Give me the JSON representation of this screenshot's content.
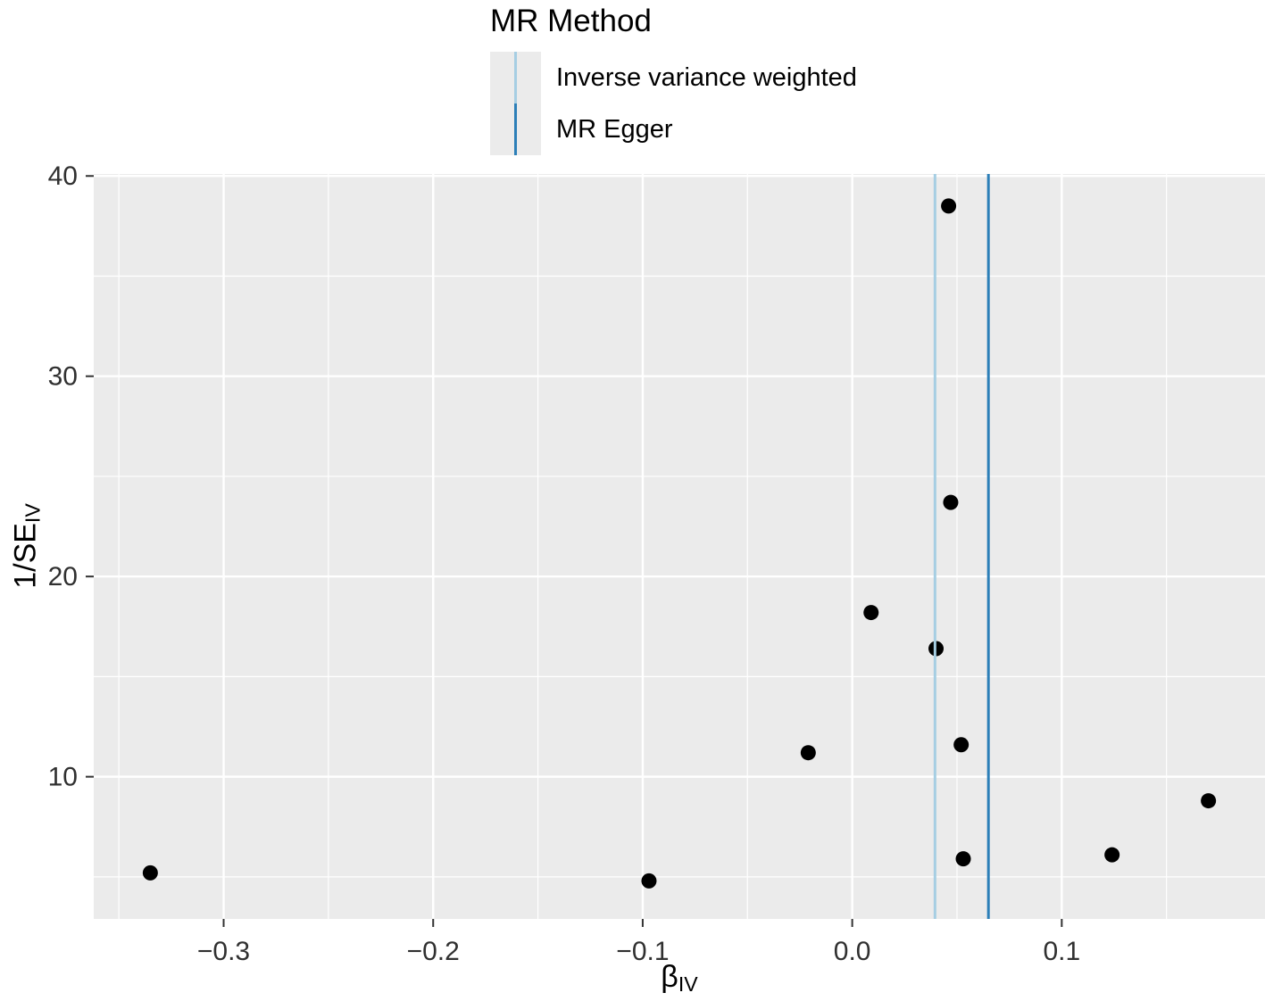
{
  "chart_data": {
    "type": "scatter",
    "title": "",
    "xlabel": "β_IV",
    "ylabel": "1/SE_IV",
    "x_title": {
      "main": "β",
      "sub": "IV"
    },
    "y_title": {
      "main": "1/SE",
      "sub": "IV"
    },
    "xlim": [
      -0.362,
      0.197
    ],
    "ylim": [
      2.9,
      40.1
    ],
    "grid": true,
    "panel_bg": "#ebebeb",
    "grid_color": "#ffffff",
    "point_color": "#000000",
    "tick_color": "#333333",
    "tick_label_color": "#303030",
    "x_major_ticks": [
      -0.3,
      -0.2,
      -0.1,
      0.0,
      0.1
    ],
    "x_tick_labels": [
      "−0.3",
      "−0.2",
      "−0.1",
      "0.0",
      "0.1"
    ],
    "x_minor_ticks": [
      -0.35,
      -0.25,
      -0.15,
      -0.05,
      0.05,
      0.15
    ],
    "y_major_ticks": [
      10,
      20,
      30,
      40
    ],
    "y_tick_labels": [
      "10",
      "20",
      "30",
      "40"
    ],
    "y_minor_ticks": [
      5,
      15,
      25,
      35
    ],
    "points": [
      {
        "x": 0.046,
        "y": 38.5
      },
      {
        "x": 0.047,
        "y": 23.7
      },
      {
        "x": 0.009,
        "y": 18.2
      },
      {
        "x": 0.04,
        "y": 16.4
      },
      {
        "x": 0.052,
        "y": 11.6
      },
      {
        "x": -0.021,
        "y": 11.2
      },
      {
        "x": 0.17,
        "y": 8.8
      },
      {
        "x": 0.124,
        "y": 6.1
      },
      {
        "x": 0.053,
        "y": 5.9
      },
      {
        "x": -0.335,
        "y": 5.2
      },
      {
        "x": -0.097,
        "y": 4.8
      }
    ],
    "vlines": [
      {
        "x": 0.0395,
        "color": "#a6cee3",
        "method": "Inverse variance weighted"
      },
      {
        "x": 0.065,
        "color": "#2c7fb8",
        "method": "MR Egger"
      }
    ],
    "legend": {
      "title": "MR Method",
      "position": "top",
      "entries": [
        {
          "label": "Inverse variance weighted",
          "color": "#a6cee3"
        },
        {
          "label": "MR Egger",
          "color": "#2c7fb8"
        }
      ]
    }
  }
}
